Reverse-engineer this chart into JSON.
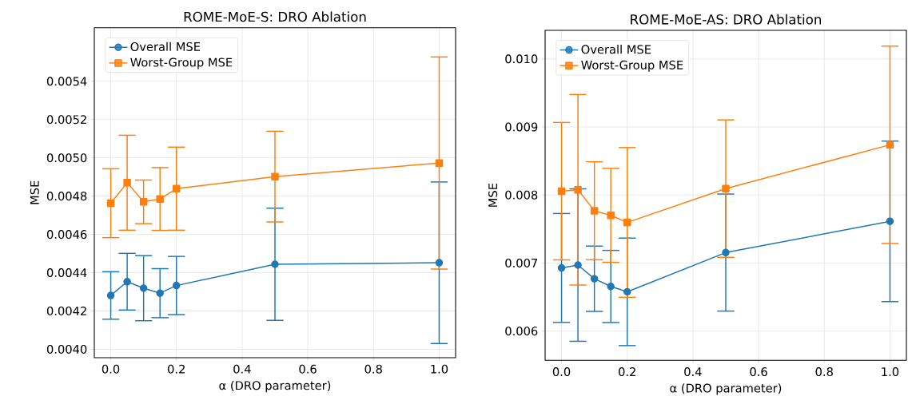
{
  "chart_data": [
    {
      "type": "line",
      "title": "ROME-MoE-S: DRO Ablation",
      "xlabel": "α (DRO parameter)",
      "ylabel": "MSE",
      "x": [
        0.0,
        0.05,
        0.1,
        0.15,
        0.2,
        0.5,
        1.0
      ],
      "series": [
        {
          "name": "Overall MSE",
          "color": "#1f77b4",
          "marker": "circle",
          "values": [
            0.004281,
            0.004353,
            0.004319,
            0.004293,
            0.004333,
            0.004444,
            0.004452
          ],
          "errors": [
            0.000124,
            0.000148,
            0.00017,
            0.000128,
            0.000152,
            0.000293,
            0.000422
          ]
        },
        {
          "name": "Worst-Group MSE",
          "color": "#ff7f0e",
          "marker": "square",
          "values": [
            0.004763,
            0.00487,
            0.00477,
            0.004785,
            0.004839,
            0.004902,
            0.004973
          ],
          "errors": [
            0.00018,
            0.000248,
            0.000114,
            0.000164,
            0.000217,
            0.000237,
            0.000554
          ]
        }
      ],
      "xlim": [
        -0.05,
        1.05
      ],
      "ylim": [
        0.003956,
        0.00568
      ],
      "xticks": [
        {
          "value": 0.0,
          "label": "0.0"
        },
        {
          "value": 0.2,
          "label": "0.2"
        },
        {
          "value": 0.4,
          "label": "0.4"
        },
        {
          "value": 0.6,
          "label": "0.6"
        },
        {
          "value": 0.8,
          "label": "0.8"
        },
        {
          "value": 1.0,
          "label": "1.0"
        }
      ],
      "yticks": [
        {
          "value": 0.004,
          "label": "0.0040"
        },
        {
          "value": 0.0042,
          "label": "0.0042"
        },
        {
          "value": 0.0044,
          "label": "0.0044"
        },
        {
          "value": 0.0046,
          "label": "0.0046"
        },
        {
          "value": 0.0048,
          "label": "0.0048"
        },
        {
          "value": 0.005,
          "label": "0.0050"
        },
        {
          "value": 0.0052,
          "label": "0.0052"
        },
        {
          "value": 0.0054,
          "label": "0.0054"
        }
      ],
      "grid": true,
      "legend": "top left"
    },
    {
      "type": "line",
      "title": "ROME-MoE-AS: DRO Ablation",
      "xlabel": "α (DRO parameter)",
      "ylabel": "MSE",
      "x": [
        0.0,
        0.05,
        0.1,
        0.15,
        0.2,
        0.5,
        1.0
      ],
      "series": [
        {
          "name": "Overall MSE",
          "color": "#1f77b4",
          "marker": "circle",
          "values": [
            0.006928,
            0.00697,
            0.006769,
            0.006656,
            0.006577,
            0.007154,
            0.007613
          ],
          "errors": [
            0.0008,
            0.00112,
            0.00048,
            0.00053,
            0.00079,
            0.00086,
            0.00118
          ]
        },
        {
          "name": "Worst-Group MSE",
          "color": "#ff7f0e",
          "marker": "square",
          "values": [
            0.008056,
            0.008077,
            0.007768,
            0.007701,
            0.007597,
            0.008094,
            0.008738
          ],
          "errors": [
            0.00101,
            0.0014,
            0.00072,
            0.00069,
            0.0011,
            0.00101,
            0.00145
          ]
        }
      ],
      "xlim": [
        -0.05,
        1.05
      ],
      "ylim": [
        0.00557,
        0.01042
      ],
      "xticks": [
        {
          "value": 0.0,
          "label": "0.0"
        },
        {
          "value": 0.2,
          "label": "0.2"
        },
        {
          "value": 0.4,
          "label": "0.4"
        },
        {
          "value": 0.6,
          "label": "0.6"
        },
        {
          "value": 0.8,
          "label": "0.8"
        },
        {
          "value": 1.0,
          "label": "1.0"
        }
      ],
      "yticks": [
        {
          "value": 0.006,
          "label": "0.006"
        },
        {
          "value": 0.007,
          "label": "0.007"
        },
        {
          "value": 0.008,
          "label": "0.008"
        },
        {
          "value": 0.009,
          "label": "0.009"
        },
        {
          "value": 0.01,
          "label": "0.010"
        }
      ],
      "grid": true,
      "legend": "top left"
    }
  ]
}
